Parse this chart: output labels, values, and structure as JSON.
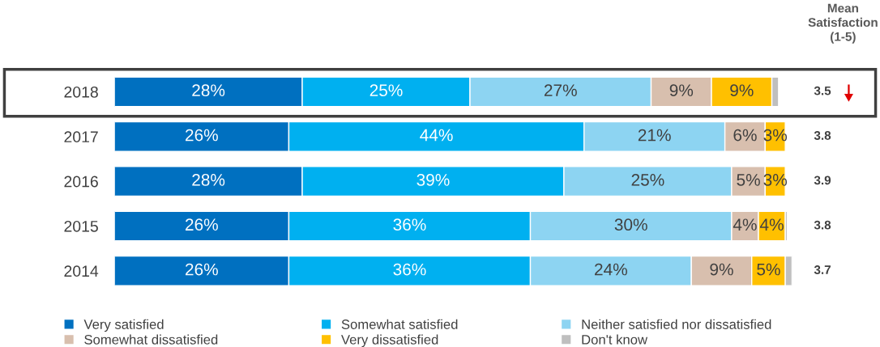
{
  "chart_data": {
    "type": "bar",
    "orientation": "horizontal",
    "stacked": true,
    "categories": [
      "2018",
      "2017",
      "2016",
      "2015",
      "2014"
    ],
    "series": [
      {
        "name": "Very satisfied",
        "color": "#0070c0",
        "values": [
          28,
          26,
          28,
          26,
          26
        ],
        "value_labels": [
          "28%",
          "26%",
          "28%",
          "26%",
          "26%"
        ]
      },
      {
        "name": "Somewhat satisfied",
        "color": "#00b0f0",
        "values": [
          25,
          44,
          39,
          36,
          36
        ],
        "value_labels": [
          "25%",
          "44%",
          "39%",
          "36%",
          "36%"
        ]
      },
      {
        "name": "Neither satisfied nor dissatisfied",
        "color": "#8dd4f2",
        "values": [
          27,
          21,
          25,
          30,
          24
        ],
        "value_labels": [
          "27%",
          "21%",
          "25%",
          "30%",
          "24%"
        ]
      },
      {
        "name": "Somewhat dissatisfied",
        "color": "#d8bfae",
        "values": [
          9,
          6,
          5,
          4,
          9
        ],
        "value_labels": [
          "9%",
          "6%",
          "5%",
          "4%",
          "9%"
        ]
      },
      {
        "name": "Very dissatisfied",
        "color": "#ffc000",
        "values": [
          9,
          3,
          3,
          4,
          5
        ],
        "value_labels": [
          "9%",
          "3%",
          "3%",
          "4%",
          "5%"
        ]
      },
      {
        "name": "Don't know",
        "color": "#bfbfbf",
        "values": [
          1,
          0,
          0,
          0.3,
          1
        ],
        "value_labels": [
          null,
          null,
          null,
          null,
          null
        ]
      }
    ],
    "annotations": [
      "Mean Satisfaction (1-5)",
      "3.5",
      "3.8",
      "3.9",
      "3.8",
      "3.7"
    ],
    "legend": "bottom",
    "grid": false
  }
}
